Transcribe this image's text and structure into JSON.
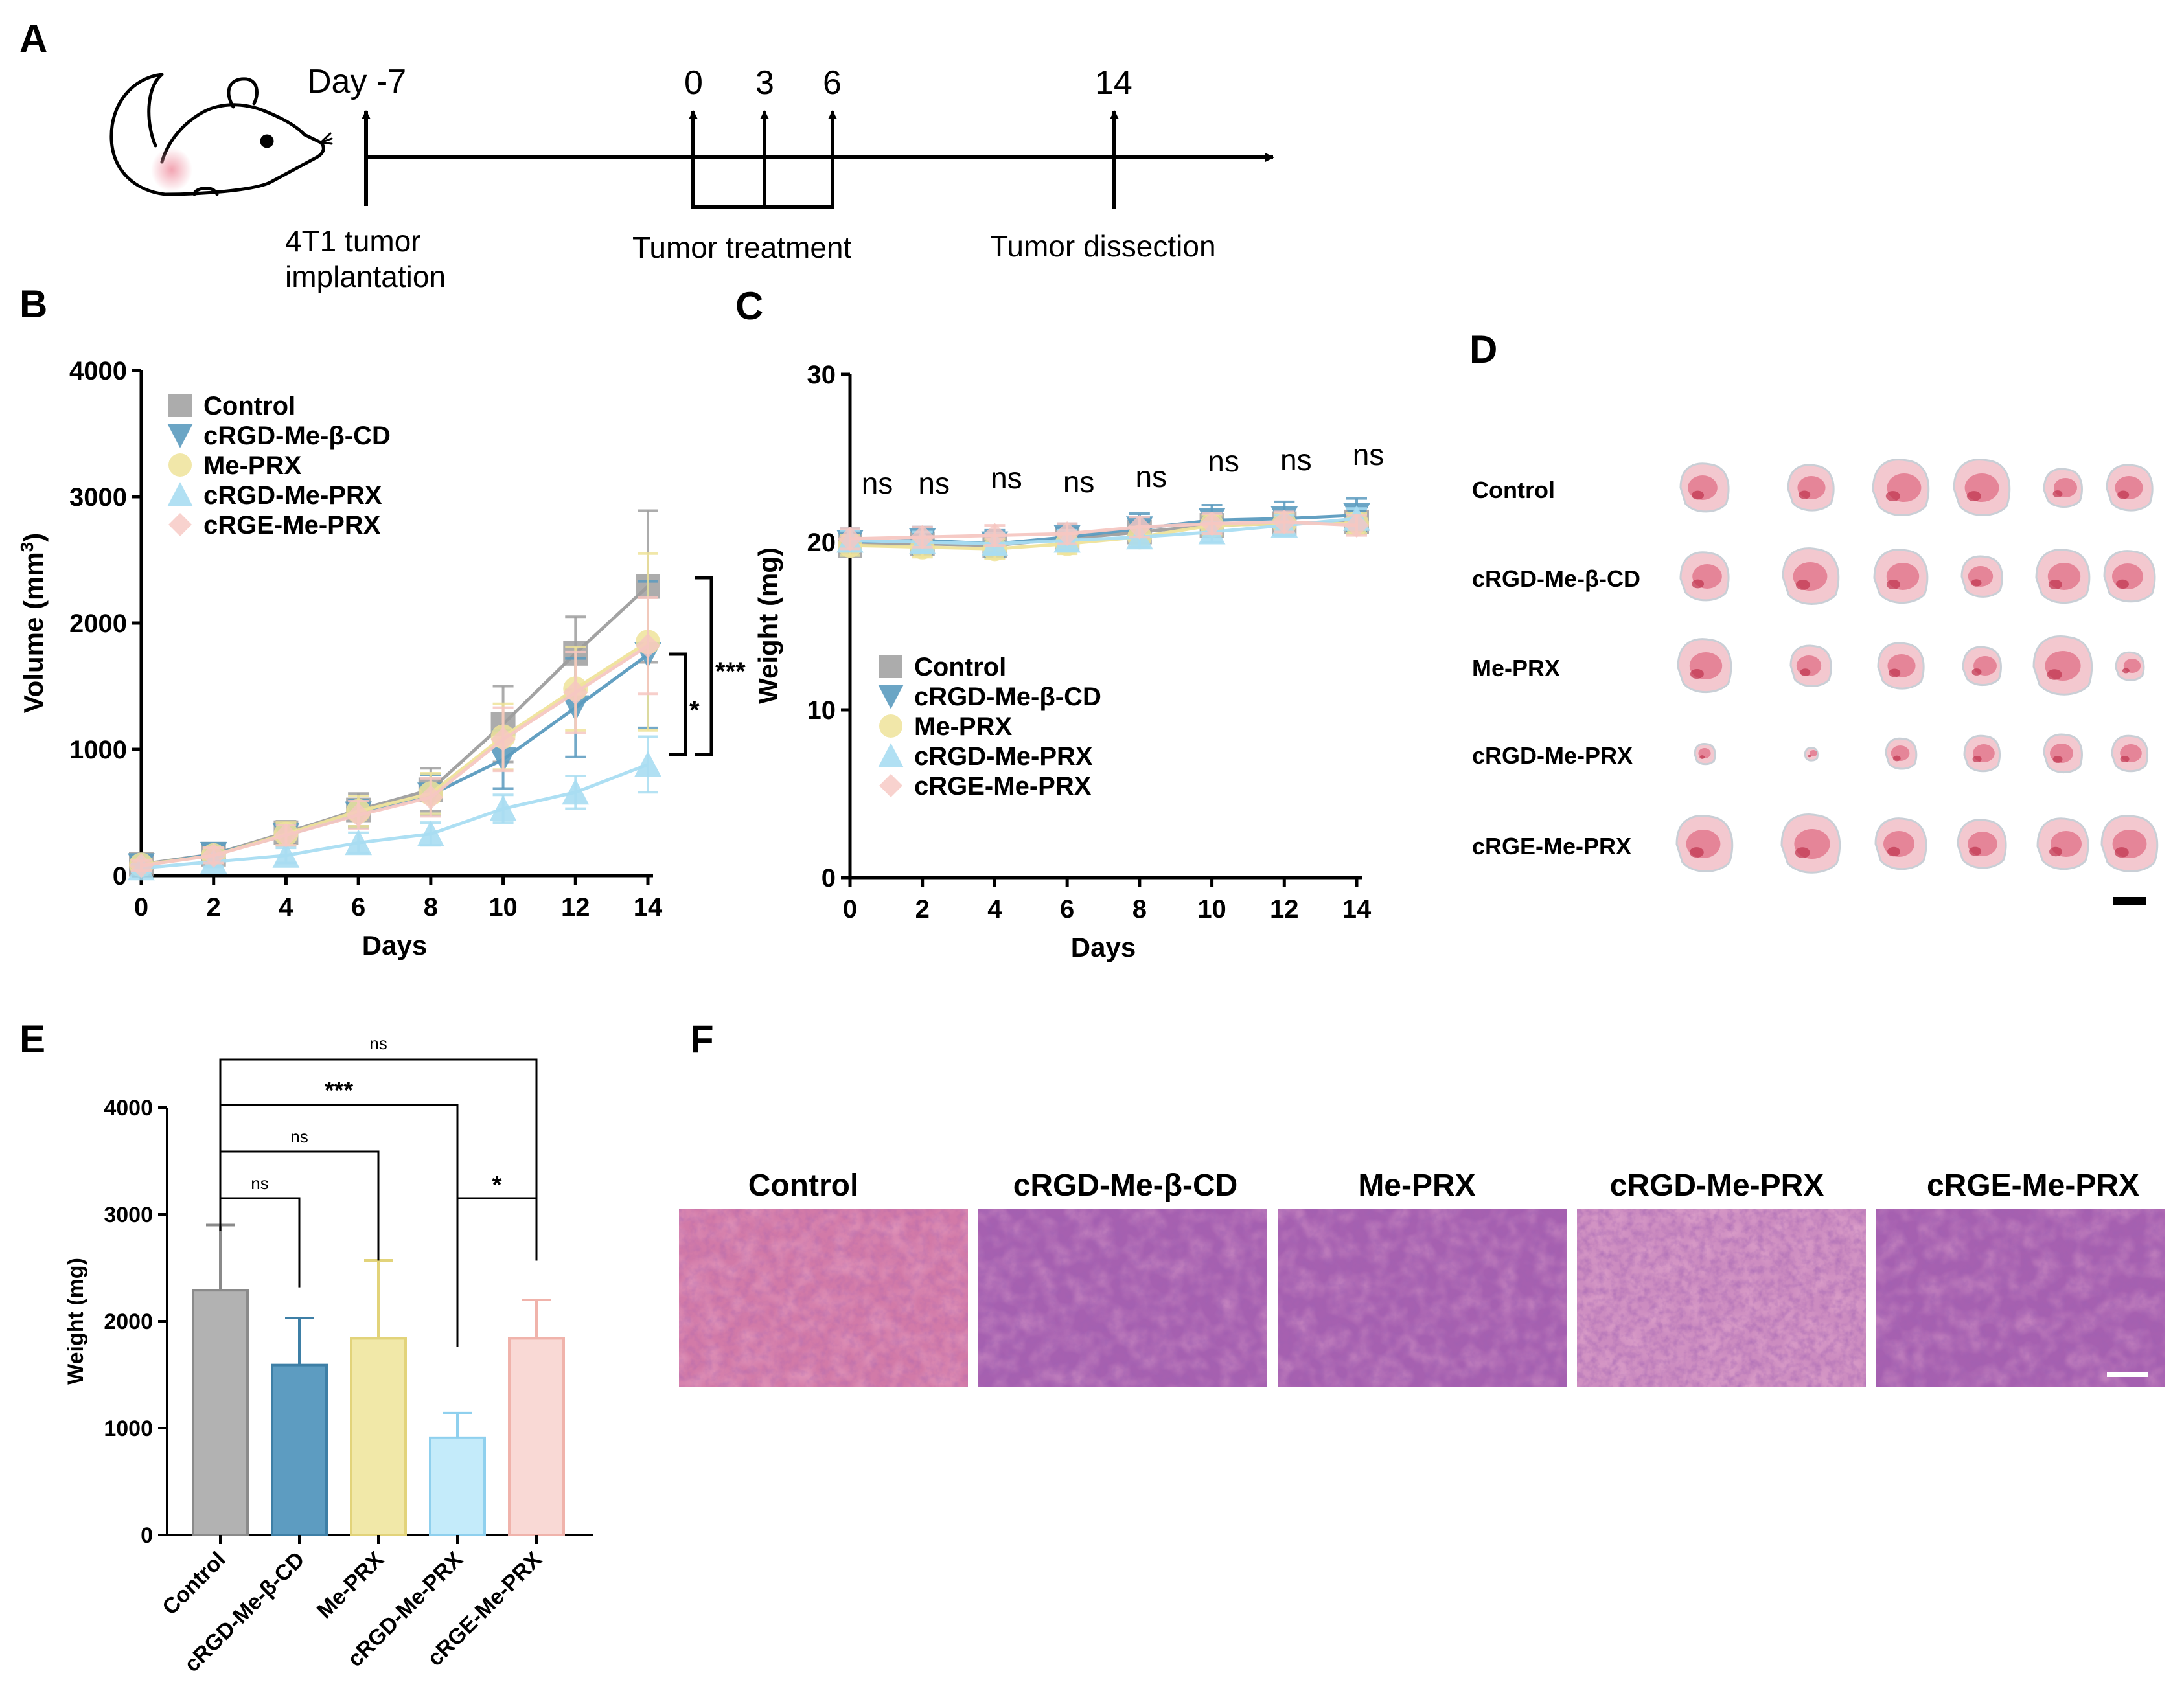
{
  "panel_labels": {
    "a": "A",
    "b": "B",
    "c": "C",
    "d": "D",
    "e": "E",
    "f": "F"
  },
  "colors": {
    "control": "#9e9e9e",
    "cRGD_Me_bCD": "#5b9bbf",
    "Me_PRX": "#efe39a",
    "cRGD_Me_PRX": "#a9ddf2",
    "cRGE_Me_PRX": "#f6c7c2",
    "tissue_pink": "#e2a3b1",
    "he_purple": "#9a5aa8"
  },
  "timeline": {
    "day_minus7": "Day -7",
    "ticks": [
      "0",
      "3",
      "6",
      "14"
    ],
    "implant_line1": "4T1 tumor",
    "implant_line2": "implantation",
    "treatment": "Tumor treatment",
    "dissection": "Tumor dissection",
    "icons": [
      "mouse-icon"
    ]
  },
  "chart_data": [
    {
      "type": "line",
      "panel": "B",
      "xlabel": "Days",
      "ylabel_main": "Volume (mm",
      "ylabel_sup": "3",
      "ylabel_close": ")",
      "xlim": [
        0,
        14
      ],
      "ylim": [
        0,
        4000
      ],
      "x": [
        0,
        2,
        4,
        6,
        8,
        10,
        12,
        14
      ],
      "x_ticks": [
        "0",
        "2",
        "4",
        "6",
        "8",
        "10",
        "12",
        "14"
      ],
      "y_ticks": [
        "0",
        "1000",
        "2000",
        "3000",
        "4000"
      ],
      "legend": [
        "Control",
        "cRGD-Me-β-CD",
        "Me-PRX",
        "cRGD-Me-PRX",
        "cRGE-Me-PRX"
      ],
      "series": [
        {
          "name": "Control",
          "values": [
            90,
            170,
            340,
            520,
            680,
            1200,
            1760,
            2290
          ],
          "errors": [
            40,
            60,
            90,
            130,
            170,
            300,
            290,
            600
          ]
        },
        {
          "name": "cRGD-Me-β-CD",
          "values": [
            80,
            170,
            320,
            490,
            640,
            920,
            1330,
            1750
          ],
          "errors": [
            40,
            60,
            80,
            110,
            160,
            230,
            390,
            580
          ]
        },
        {
          "name": "Me-PRX",
          "values": [
            85,
            160,
            330,
            510,
            650,
            1100,
            1480,
            1850
          ],
          "errors": [
            40,
            60,
            90,
            120,
            160,
            260,
            330,
            700
          ]
        },
        {
          "name": "cRGD-Me-PRX",
          "values": [
            60,
            110,
            160,
            260,
            330,
            530,
            660,
            880
          ],
          "errors": [
            30,
            40,
            60,
            80,
            90,
            110,
            130,
            220
          ]
        },
        {
          "name": "cRGE-Me-PRX",
          "values": [
            80,
            160,
            320,
            480,
            620,
            1080,
            1450,
            1820
          ],
          "errors": [
            40,
            60,
            80,
            110,
            150,
            250,
            320,
            380
          ]
        }
      ],
      "significance": [
        {
          "label": "***",
          "groups": [
            "Control",
            "cRGD-Me-PRX"
          ]
        },
        {
          "label": "*",
          "groups": [
            "cRGD-Me-β-CD",
            "cRGD-Me-PRX"
          ]
        }
      ]
    },
    {
      "type": "line",
      "panel": "C",
      "xlabel": "Days",
      "ylabel": "Weight (mg)",
      "xlim": [
        0,
        14
      ],
      "ylim": [
        0,
        30
      ],
      "x": [
        0,
        2,
        4,
        6,
        8,
        10,
        12,
        14
      ],
      "x_ticks": [
        "0",
        "2",
        "4",
        "6",
        "8",
        "10",
        "12",
        "14"
      ],
      "y_ticks": [
        "0",
        "10",
        "20",
        "30"
      ],
      "legend": [
        "Control",
        "cRGD-Me-β-CD",
        "Me-PRX",
        "cRGD-Me-PRX",
        "cRGE-Me-PRX"
      ],
      "ns_labels": [
        "ns",
        "ns",
        "ns",
        "ns",
        "ns",
        "ns",
        "ns",
        "ns"
      ],
      "series": [
        {
          "name": "Control",
          "values": [
            19.8,
            19.9,
            19.8,
            20.2,
            20.6,
            21.0,
            21.1,
            21.2
          ],
          "errors": [
            0.6,
            0.6,
            0.6,
            0.6,
            0.6,
            0.6,
            0.6,
            0.6
          ]
        },
        {
          "name": "cRGD-Me-β-CD",
          "values": [
            20.0,
            20.1,
            19.9,
            20.3,
            20.8,
            21.3,
            21.4,
            21.6
          ],
          "errors": [
            0.8,
            0.8,
            0.8,
            0.8,
            0.9,
            0.9,
            1.0,
            1.0
          ]
        },
        {
          "name": "Me-PRX",
          "values": [
            19.8,
            19.7,
            19.6,
            19.9,
            20.3,
            21.0,
            21.1,
            21.1
          ],
          "errors": [
            0.6,
            0.6,
            0.6,
            0.6,
            0.6,
            0.6,
            0.6,
            0.6
          ]
        },
        {
          "name": "cRGD-Me-PRX",
          "values": [
            20.1,
            20.0,
            19.9,
            20.1,
            20.3,
            20.6,
            21.0,
            21.4
          ],
          "errors": [
            0.6,
            0.6,
            0.6,
            0.6,
            0.6,
            0.6,
            0.6,
            0.6
          ]
        },
        {
          "name": "cRGE-Me-PRX",
          "values": [
            20.2,
            20.3,
            20.4,
            20.5,
            20.9,
            21.1,
            21.2,
            21.0
          ],
          "errors": [
            0.6,
            0.6,
            0.6,
            0.6,
            0.6,
            0.6,
            0.6,
            0.6
          ]
        }
      ]
    },
    {
      "type": "bar",
      "panel": "E",
      "ylabel": "Weight (mg)",
      "ylim": [
        0,
        4000
      ],
      "y_ticks": [
        "0",
        "1000",
        "2000",
        "3000",
        "4000"
      ],
      "categories": [
        "Control",
        "cRGD-Me-β-CD",
        "Me-PRX",
        "cRGD-Me-PRX",
        "cRGE-Me-PRX"
      ],
      "values": [
        2290,
        1590,
        1840,
        910,
        1840
      ],
      "errors": [
        610,
        440,
        730,
        230,
        360
      ],
      "significance": [
        {
          "label": "ns",
          "pair": [
            0,
            1
          ]
        },
        {
          "label": "ns",
          "pair": [
            0,
            2
          ]
        },
        {
          "label": "***",
          "pair": [
            0,
            3
          ]
        },
        {
          "label": "ns",
          "pair": [
            0,
            4
          ]
        },
        {
          "label": "*",
          "pair": [
            3,
            4
          ]
        }
      ]
    }
  ],
  "panel_d": {
    "rows": [
      "Control",
      "cRGD-Me-β-CD",
      "Me-PRX",
      "cRGD-Me-PRX",
      "cRGE-Me-PRX"
    ],
    "tumors_per_row": 6,
    "description_icon": "tumor-photo-icon"
  },
  "panel_f": {
    "titles": [
      "Control",
      "cRGD-Me-β-CD",
      "Me-PRX",
      "cRGD-Me-PRX",
      "cRGE-Me-PRX"
    ]
  }
}
